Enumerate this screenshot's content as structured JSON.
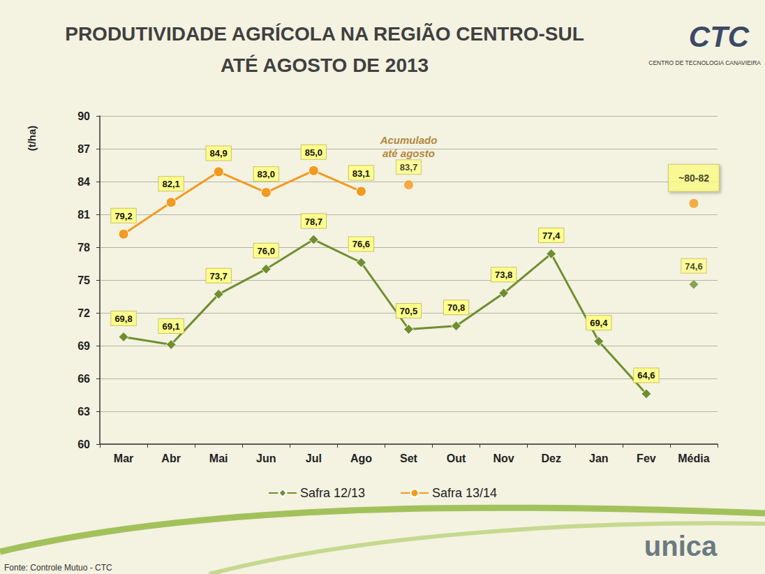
{
  "chart_data": {
    "type": "line",
    "title": "PRODUTIVIDADE AGRÍCOLA NA REGIÃO CENTRO-SUL",
    "subtitle": "ATÉ AGOSTO DE 2013",
    "y_label": "(t/ha)",
    "categories": [
      "Mar",
      "Abr",
      "Mai",
      "Jun",
      "Jul",
      "Ago",
      "Set",
      "Out",
      "Nov",
      "Dez",
      "Jan",
      "Fev",
      "Média"
    ],
    "ylim": [
      60,
      90
    ],
    "yticks": [
      60,
      63,
      66,
      69,
      72,
      75,
      78,
      81,
      84,
      87,
      90
    ],
    "grid": true,
    "legend": "bottom",
    "data_labels": true,
    "series": [
      {
        "name": "Safra 12/13",
        "color": "#6f8f2f",
        "marker": "diamond",
        "values": [
          69.8,
          69.1,
          73.7,
          76.0,
          78.7,
          76.6,
          70.5,
          70.8,
          73.8,
          77.4,
          69.4,
          64.6,
          null
        ],
        "value_labels": [
          "69,8",
          "69,1",
          "73,7",
          "76,0",
          "78,7",
          "76,6",
          "70,5",
          "70,8",
          "73,8",
          "77,4",
          "69,4",
          "64,6",
          null
        ],
        "average": {
          "category": "Média",
          "value": 74.6,
          "label": "74,6"
        }
      },
      {
        "name": "Safra 13/14",
        "color": "#f39a1e",
        "marker": "circle",
        "values": [
          79.2,
          82.1,
          84.9,
          83.0,
          85.0,
          83.1,
          null,
          null,
          null,
          null,
          null,
          null,
          null
        ],
        "value_labels": [
          "79,2",
          "82,1",
          "84,9",
          "83,0",
          "85,0",
          "83,1",
          null,
          null,
          null,
          null,
          null,
          null,
          null
        ],
        "cumulative": {
          "category": "Set",
          "value": 83.7,
          "label": "83,7",
          "text": [
            "Acumulado",
            "até agosto"
          ]
        },
        "average": {
          "category": "Média",
          "value": 82,
          "label": "~80-82"
        }
      }
    ],
    "source": "Fonte: Controle Mutuo - CTC",
    "logo": {
      "name": "CTC",
      "caption": "CENTRO DE TECNOLOGIA CANAVIEIRA"
    },
    "footer_logo": "unica"
  }
}
